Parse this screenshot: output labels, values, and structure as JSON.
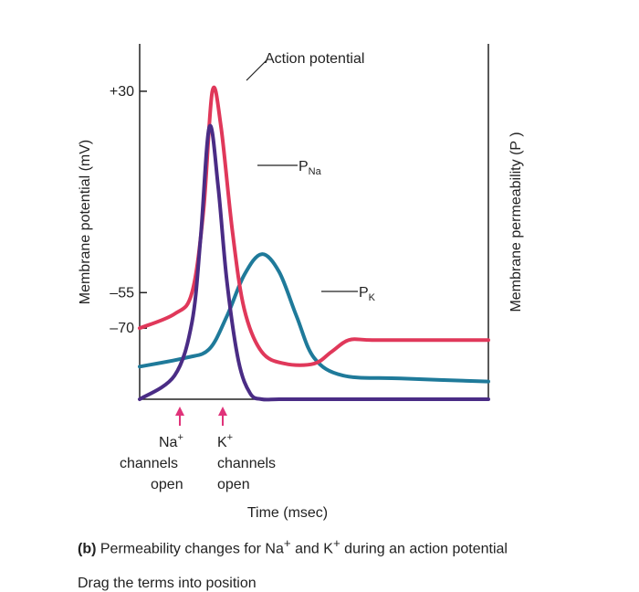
{
  "chart_data": {
    "type": "line",
    "xlabel": "Time (msec)",
    "ylabel_left": "Membrane potential (mV)",
    "ylabel_right": "Membrane permeability (P )",
    "yticks": [
      {
        "label": "+30",
        "value": 30
      },
      {
        "label": "–55",
        "value": -55
      },
      {
        "label": "–70",
        "value": -70
      }
    ],
    "colors": {
      "action_potential": "#e0385a",
      "p_na": "#4a2c85",
      "p_k": "#1f7a9a",
      "marker": "#e0337a"
    },
    "series": [
      {
        "name": "Action potential",
        "label": "Action potential",
        "x": [
          0,
          0.6,
          0.9,
          1.1,
          1.25,
          1.4,
          1.6,
          1.8,
          2.1,
          2.5,
          3.0,
          3.3,
          3.6,
          4.0,
          5.0,
          6.0
        ],
        "y": [
          -70,
          -64,
          -55,
          -20,
          30,
          15,
          -30,
          -62,
          -80,
          -85,
          -85,
          -80,
          -75,
          -75,
          -75,
          -75
        ]
      },
      {
        "name": "P_Na",
        "label_main": "P",
        "label_sub": "Na",
        "x": [
          0,
          0.6,
          0.9,
          1.05,
          1.2,
          1.35,
          1.5,
          1.7,
          1.9,
          2.1,
          2.4,
          3.0,
          6.0
        ],
        "y": [
          0.0,
          0.08,
          0.26,
          0.55,
          0.92,
          0.72,
          0.4,
          0.13,
          0.02,
          0.0,
          0.0,
          0.0,
          0.0
        ]
      },
      {
        "name": "P_K",
        "label_main": "P",
        "label_sub": "K",
        "x": [
          0,
          0.8,
          1.2,
          1.5,
          1.8,
          2.1,
          2.4,
          2.7,
          3.0,
          3.5,
          4.5,
          6.0
        ],
        "y": [
          0.11,
          0.14,
          0.17,
          0.28,
          0.42,
          0.49,
          0.43,
          0.28,
          0.14,
          0.08,
          0.07,
          0.06
        ]
      }
    ],
    "annotations": [
      {
        "x": 0.45,
        "text_lines": [
          "Na",
          "channels",
          "open"
        ],
        "sup": "+"
      },
      {
        "x": 1.0,
        "text_lines": [
          "K",
          "channels",
          "open"
        ],
        "sup": "+"
      }
    ],
    "xlim": [
      0,
      6
    ],
    "ylim_potential": [
      -100,
      50
    ],
    "ylim_permeability": [
      0,
      1.2
    ]
  },
  "caption": {
    "prefix": "(b)",
    "part1": " Permeability changes for Na",
    "sup1": "+",
    "part2": " and K",
    "sup2": "+",
    "part3": " during an action potential"
  },
  "cutoff_text": "Drag the terms into position"
}
